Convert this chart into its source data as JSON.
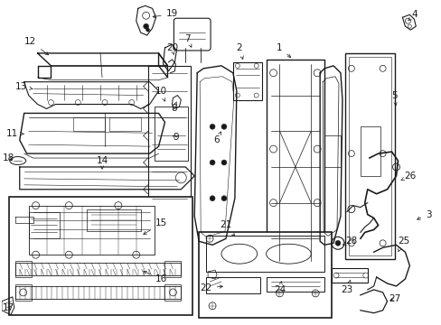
{
  "bg": "#ffffff",
  "lc": "#1a1a1a",
  "lw": 0.7,
  "fs": 7.5,
  "fw": 4.89,
  "fh": 3.6,
  "dpi": 100
}
